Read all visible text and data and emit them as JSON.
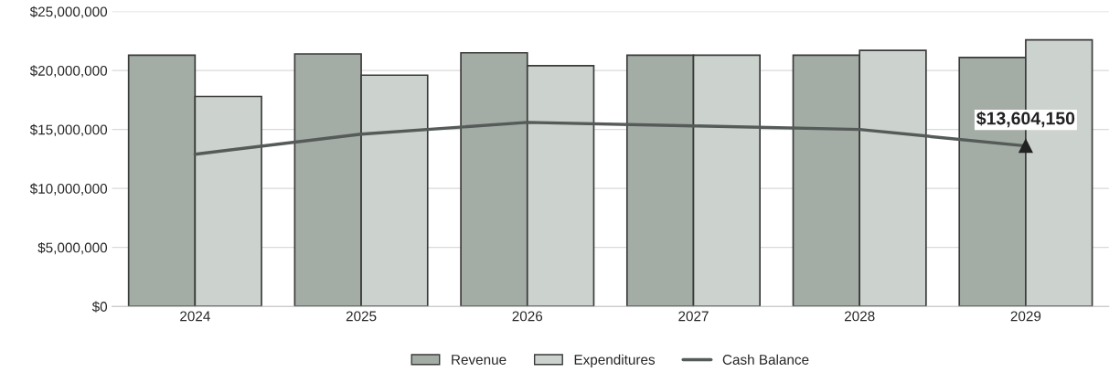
{
  "chart_data": {
    "type": "bar",
    "categories": [
      "2024",
      "2025",
      "2026",
      "2027",
      "2028",
      "2029"
    ],
    "series": [
      {
        "name": "Revenue",
        "color": "#a3ada6",
        "values": [
          21300000,
          21400000,
          21500000,
          21300000,
          21300000,
          21100000
        ]
      },
      {
        "name": "Expenditures",
        "color": "#ccd3ce",
        "values": [
          17800000,
          19600000,
          20400000,
          21300000,
          21700000,
          22600000
        ]
      },
      {
        "name": "Cash Balance",
        "type": "line",
        "color": "#555b58",
        "values": [
          12900000,
          14600000,
          15600000,
          15300000,
          15000000,
          13604150
        ],
        "value_labels": [
          null,
          null,
          null,
          null,
          null,
          "$13,604,150"
        ],
        "marker": "none"
      }
    ],
    "ylim": [
      0,
      25000000
    ],
    "yticks": [
      {
        "value": 0,
        "label": "$0"
      },
      {
        "value": 5000000,
        "label": "$5,000,000"
      },
      {
        "value": 10000000,
        "label": "$10,000,000"
      },
      {
        "value": 15000000,
        "label": "$15,000,000"
      },
      {
        "value": 20000000,
        "label": "$20,000,000"
      },
      {
        "value": 25000000,
        "label": "$25,000,000"
      }
    ],
    "grid": "y",
    "legend": "bottom"
  }
}
